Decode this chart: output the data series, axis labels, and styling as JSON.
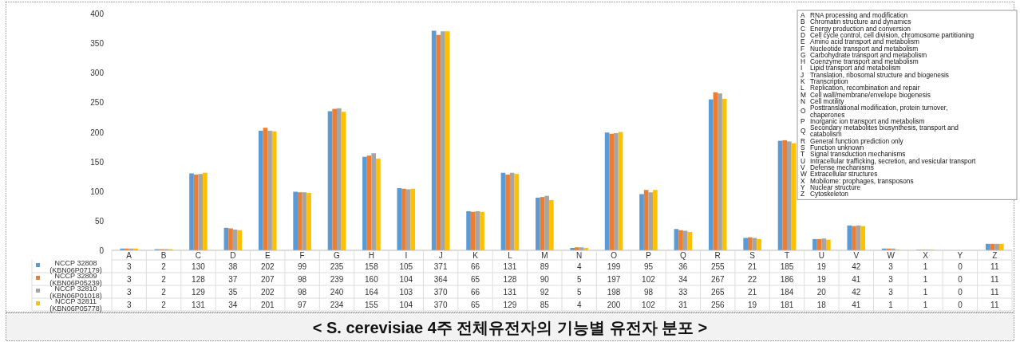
{
  "chart_data": {
    "type": "bar",
    "title": "< S. cerevisiae 4주 전체유전자의 기능별 유전자 분포 >",
    "categories": [
      "A",
      "B",
      "C",
      "D",
      "E",
      "F",
      "G",
      "H",
      "I",
      "J",
      "K",
      "L",
      "M",
      "N",
      "O",
      "P",
      "Q",
      "R",
      "S",
      "T",
      "U",
      "V",
      "W",
      "X",
      "Y",
      "Z"
    ],
    "series": [
      {
        "name": "NCCP 32808 (KBN06P07179)",
        "color": "#5b9bd5",
        "values": [
          3,
          2,
          130,
          38,
          202,
          99,
          235,
          158,
          105,
          371,
          66,
          131,
          89,
          4,
          199,
          95,
          36,
          255,
          21,
          185,
          19,
          42,
          3,
          1,
          0,
          11
        ]
      },
      {
        "name": "NCCP 32809 (KBN06P05239)",
        "color": "#ed7d31",
        "values": [
          3,
          2,
          128,
          37,
          207,
          98,
          239,
          160,
          104,
          364,
          65,
          128,
          90,
          5,
          197,
          102,
          34,
          267,
          22,
          186,
          19,
          41,
          3,
          1,
          0,
          11
        ]
      },
      {
        "name": "NCCP 32810 (KBN06P01018)",
        "color": "#a5a5a5",
        "values": [
          3,
          2,
          129,
          35,
          202,
          98,
          240,
          164,
          103,
          370,
          66,
          131,
          92,
          5,
          198,
          98,
          33,
          265,
          21,
          184,
          20,
          42,
          3,
          1,
          0,
          11
        ]
      },
      {
        "name": "NCCP 32811 (KBN06P05778)",
        "color": "#ffc000",
        "values": [
          3,
          2,
          131,
          34,
          201,
          97,
          234,
          155,
          104,
          370,
          65,
          129,
          85,
          4,
          200,
          102,
          31,
          256,
          19,
          181,
          18,
          41,
          1,
          1,
          0,
          11
        ]
      }
    ],
    "ylim": [
      0,
      400
    ],
    "yticks": [
      0,
      50,
      100,
      150,
      200,
      250,
      300,
      350,
      400
    ],
    "data_labels": true,
    "legend": "bottom",
    "annotations": [
      "A RNA processing and modification",
      "B Chromatin structure and dynamics",
      "C Energy production and conversion",
      "D Cell cycle control, cell division, chromosome partitioning",
      "E Amino acid transport and metabolism",
      "F Nucleotide transport and metabolism",
      "G Carbohydrate transport and metabolism",
      "H Coenzyme transport and metabolism",
      "I Lipid transport and metabolism",
      "J Translation, ribosomal structure and biogenesis",
      "K Transcription",
      "L Replication, recombination and repair",
      "M Cell wall/membrane/envelope biogenesis",
      "N Cell motility",
      "O Posttranslational modification, protein turnover, chaperones",
      "P Inorganic ion transport and metabolism",
      "Q Secondary metabolites biosynthesis, transport and catabolism",
      "R General function prediction only",
      "S Function unknown",
      "T Signal transduction mechanisms",
      "U Intracellular trafficking, secretion, and vesicular transport",
      "V Defense mechanisms",
      "W Extracellular structures",
      "X Mobilome: prophages, transposons",
      "Y Nuclear structure",
      "Z Cytoskeleton"
    ]
  }
}
